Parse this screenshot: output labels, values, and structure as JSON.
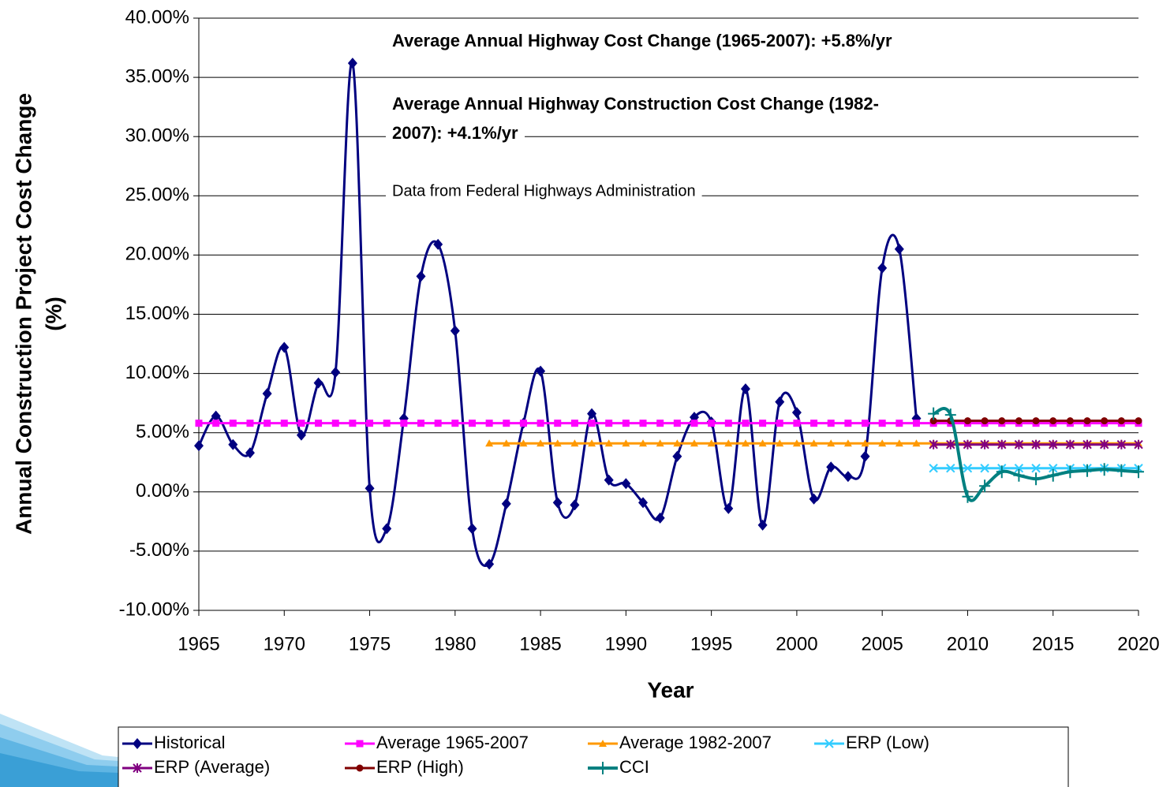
{
  "chart_data": {
    "type": "line",
    "ylabel": [
      "Annual Construction Project Cost Change",
      "(%)"
    ],
    "xlabel": "Year",
    "annotations": [
      "Average Annual Highway Cost Change (1965-2007): +5.8%/yr",
      "Average Annual Highway Construction Cost Change (1982-",
      "2007): +4.1%/yr",
      "Data from Federal Highways Administration"
    ],
    "xlim": [
      1965,
      2020
    ],
    "xticks": [
      1965,
      1970,
      1975,
      1980,
      1985,
      1990,
      1995,
      2000,
      2005,
      2010,
      2015,
      2020
    ],
    "ylim": [
      -10,
      40
    ],
    "yticks": [
      {
        "value": -10,
        "label": "-10.00%"
      },
      {
        "value": -5,
        "label": "-5.00%"
      },
      {
        "value": 0,
        "label": "0.00%"
      },
      {
        "value": 5,
        "label": "5.00%"
      },
      {
        "value": 10,
        "label": "10.00%"
      },
      {
        "value": 15,
        "label": "15.00%"
      },
      {
        "value": 20,
        "label": "20.00%"
      },
      {
        "value": 25,
        "label": "25.00%"
      },
      {
        "value": 30,
        "label": "30.00%"
      },
      {
        "value": 35,
        "label": "35.00%"
      },
      {
        "value": 40,
        "label": "40.00%"
      }
    ],
    "grid": true,
    "legend": "bottom",
    "series": [
      {
        "name": "Historical",
        "color": "#000080",
        "marker": "diamond",
        "smooth": true,
        "x": [
          1965,
          1966,
          1967,
          1968,
          1969,
          1970,
          1971,
          1972,
          1973,
          1974,
          1975,
          1976,
          1977,
          1978,
          1979,
          1980,
          1981,
          1982,
          1983,
          1984,
          1985,
          1986,
          1987,
          1988,
          1989,
          1990,
          1991,
          1992,
          1993,
          1994,
          1995,
          1996,
          1997,
          1998,
          1999,
          2000,
          2001,
          2002,
          2003,
          2004,
          2005,
          2006,
          2007
        ],
        "values": [
          3.9,
          6.4,
          4.0,
          3.3,
          8.3,
          12.2,
          4.8,
          9.2,
          10.1,
          36.2,
          0.3,
          -3.1,
          6.2,
          18.2,
          20.9,
          13.6,
          -3.1,
          -6.1,
          -1.0,
          5.8,
          10.2,
          -0.9,
          -1.1,
          6.6,
          1.0,
          0.7,
          -0.9,
          -2.2,
          3.0,
          6.3,
          5.9,
          -1.4,
          8.7,
          -2.8,
          7.6,
          6.7,
          -0.6,
          2.1,
          1.3,
          3.0,
          18.9,
          20.5,
          6.2
        ]
      },
      {
        "name": "Average 1965-2007",
        "color": "#FF00FF",
        "marker": "square",
        "smooth": false,
        "x": [
          1965,
          1966,
          1967,
          1968,
          1969,
          1970,
          1971,
          1972,
          1973,
          1974,
          1975,
          1976,
          1977,
          1978,
          1979,
          1980,
          1981,
          1982,
          1983,
          1984,
          1985,
          1986,
          1987,
          1988,
          1989,
          1990,
          1991,
          1992,
          1993,
          1994,
          1995,
          1996,
          1997,
          1998,
          1999,
          2000,
          2001,
          2002,
          2003,
          2004,
          2005,
          2006,
          2007,
          2008,
          2009,
          2010,
          2011,
          2012,
          2013,
          2014,
          2015,
          2016,
          2017,
          2018,
          2019,
          2020
        ],
        "values": [
          5.8,
          5.8,
          5.8,
          5.8,
          5.8,
          5.8,
          5.8,
          5.8,
          5.8,
          5.8,
          5.8,
          5.8,
          5.8,
          5.8,
          5.8,
          5.8,
          5.8,
          5.8,
          5.8,
          5.8,
          5.8,
          5.8,
          5.8,
          5.8,
          5.8,
          5.8,
          5.8,
          5.8,
          5.8,
          5.8,
          5.8,
          5.8,
          5.8,
          5.8,
          5.8,
          5.8,
          5.8,
          5.8,
          5.8,
          5.8,
          5.8,
          5.8,
          5.8,
          5.8,
          5.8,
          5.8,
          5.8,
          5.8,
          5.8,
          5.8,
          5.8,
          5.8,
          5.8,
          5.8,
          5.8,
          5.8
        ]
      },
      {
        "name": "Average 1982-2007",
        "color": "#FF9900",
        "marker": "triangle",
        "smooth": false,
        "x": [
          1982,
          1983,
          1984,
          1985,
          1986,
          1987,
          1988,
          1989,
          1990,
          1991,
          1992,
          1993,
          1994,
          1995,
          1996,
          1997,
          1998,
          1999,
          2000,
          2001,
          2002,
          2003,
          2004,
          2005,
          2006,
          2007,
          2008,
          2009,
          2010,
          2011,
          2012,
          2013,
          2014,
          2015,
          2016,
          2017,
          2018,
          2019,
          2020
        ],
        "values": [
          4.1,
          4.1,
          4.1,
          4.1,
          4.1,
          4.1,
          4.1,
          4.1,
          4.1,
          4.1,
          4.1,
          4.1,
          4.1,
          4.1,
          4.1,
          4.1,
          4.1,
          4.1,
          4.1,
          4.1,
          4.1,
          4.1,
          4.1,
          4.1,
          4.1,
          4.1,
          4.1,
          4.1,
          4.1,
          4.1,
          4.1,
          4.1,
          4.1,
          4.1,
          4.1,
          4.1,
          4.1,
          4.1,
          4.1
        ]
      },
      {
        "name": "ERP (Low)",
        "color": "#33CCFF",
        "marker": "x",
        "smooth": false,
        "x": [
          2008,
          2009,
          2010,
          2011,
          2012,
          2013,
          2014,
          2015,
          2016,
          2017,
          2018,
          2019,
          2020
        ],
        "values": [
          2.0,
          2.0,
          2.0,
          2.0,
          2.0,
          2.0,
          2.0,
          2.0,
          2.0,
          2.0,
          2.0,
          2.0,
          2.0
        ]
      },
      {
        "name": "ERP (Average)",
        "color": "#800080",
        "marker": "star",
        "smooth": false,
        "x": [
          2008,
          2009,
          2010,
          2011,
          2012,
          2013,
          2014,
          2015,
          2016,
          2017,
          2018,
          2019,
          2020
        ],
        "values": [
          4.0,
          4.0,
          4.0,
          4.0,
          4.0,
          4.0,
          4.0,
          4.0,
          4.0,
          4.0,
          4.0,
          4.0,
          4.0
        ]
      },
      {
        "name": "ERP (High)",
        "color": "#800000",
        "marker": "circle",
        "smooth": false,
        "x": [
          2008,
          2009,
          2010,
          2011,
          2012,
          2013,
          2014,
          2015,
          2016,
          2017,
          2018,
          2019,
          2020
        ],
        "values": [
          6.0,
          6.0,
          6.0,
          6.0,
          6.0,
          6.0,
          6.0,
          6.0,
          6.0,
          6.0,
          6.0,
          6.0,
          6.0
        ]
      },
      {
        "name": "CCI",
        "color": "#008080",
        "marker": "plus",
        "smooth": true,
        "x": [
          2008,
          2009,
          2010,
          2011,
          2012,
          2013,
          2014,
          2015,
          2016,
          2017,
          2018,
          2019,
          2020
        ],
        "values": [
          6.6,
          6.5,
          -0.4,
          0.5,
          1.7,
          1.4,
          1.1,
          1.4,
          1.7,
          1.8,
          1.9,
          1.8,
          1.7
        ]
      }
    ]
  }
}
